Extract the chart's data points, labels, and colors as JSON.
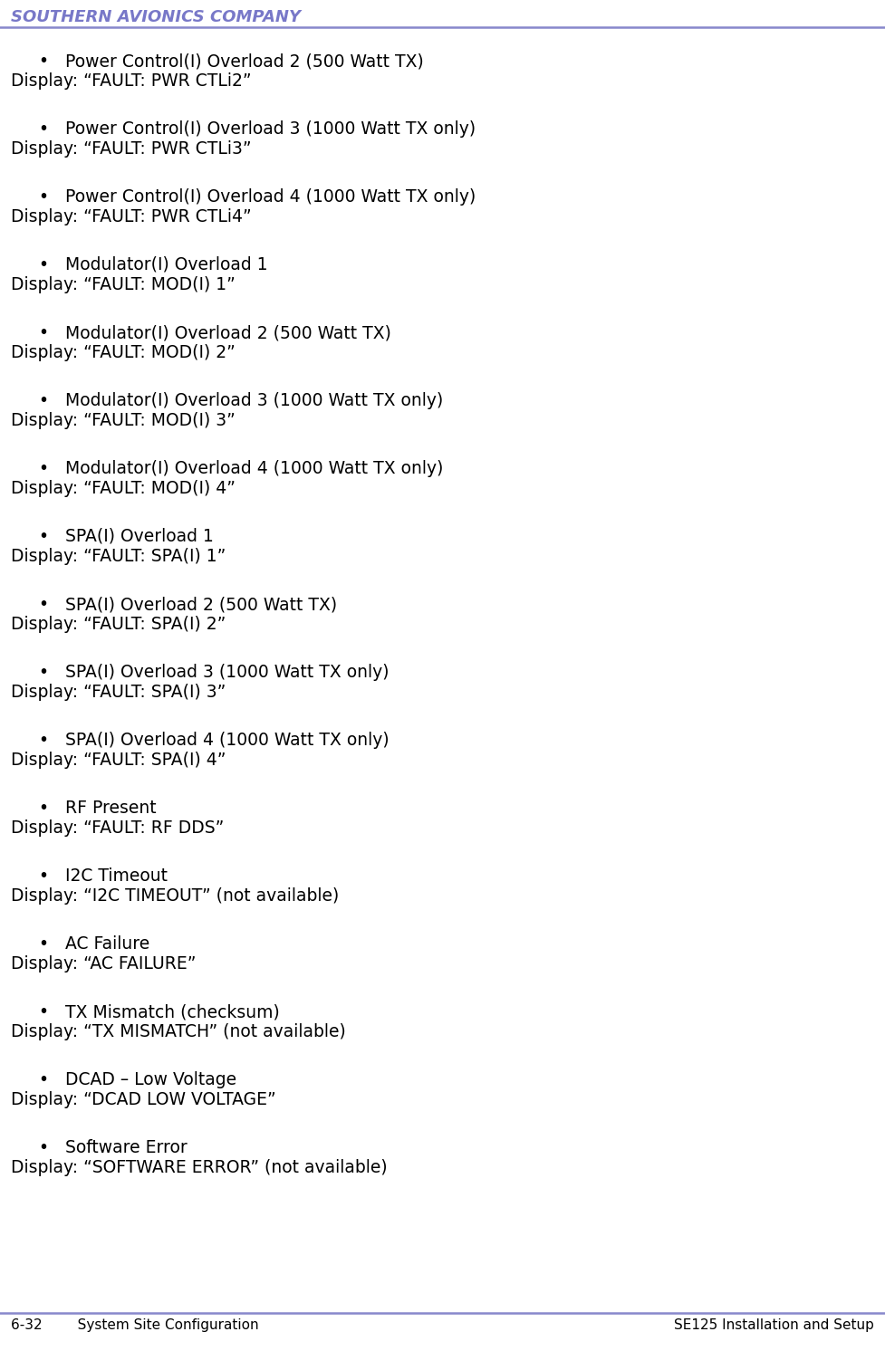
{
  "header_text": "SOUTHERN AVIONICS COMPANY",
  "header_color": "#7878C8",
  "header_line_color": "#8888CC",
  "bg_color": "#FFFFFF",
  "footer_left": "6-32        System Site Configuration",
  "footer_right": "SE125 Installation and Setup",
  "footer_color": "#000000",
  "footer_fontsize": 11,
  "header_fontsize": 13,
  "body_fontsize": 13.5,
  "bullet_char": "•",
  "entries": [
    {
      "bullet": "Power Control(I) Overload 2 (500 Watt TX)",
      "display": "Display: “FAULT: PWR CTLi2”"
    },
    {
      "bullet": "Power Control(I) Overload 3 (1000 Watt TX only)",
      "display": "Display: “FAULT: PWR CTLi3”"
    },
    {
      "bullet": "Power Control(I) Overload 4 (1000 Watt TX only)",
      "display": "Display: “FAULT: PWR CTLi4”"
    },
    {
      "bullet": "Modulator(I) Overload 1",
      "display": "Display: “FAULT: MOD(I) 1”"
    },
    {
      "bullet": "Modulator(I) Overload 2 (500 Watt TX)",
      "display": "Display: “FAULT: MOD(I) 2”"
    },
    {
      "bullet": "Modulator(I) Overload 3 (1000 Watt TX only)",
      "display": "Display: “FAULT: MOD(I) 3”"
    },
    {
      "bullet": "Modulator(I) Overload 4 (1000 Watt TX only)",
      "display": "Display: “FAULT: MOD(I) 4”"
    },
    {
      "bullet": "SPA(I) Overload 1",
      "display": "Display: “FAULT: SPA(I) 1”"
    },
    {
      "bullet": "SPA(I) Overload 2 (500 Watt TX)",
      "display": "Display: “FAULT: SPA(I) 2”"
    },
    {
      "bullet": "SPA(I) Overload 3 (1000 Watt TX only)",
      "display": "Display: “FAULT: SPA(I) 3”"
    },
    {
      "bullet": "SPA(I) Overload 4 (1000 Watt TX only)",
      "display": "Display: “FAULT: SPA(I) 4”"
    },
    {
      "bullet": "RF Present",
      "display": "Display: “FAULT: RF DDS”"
    },
    {
      "bullet": "I2C Timeout",
      "display": "Display: “I2C TIMEOUT” (not available)"
    },
    {
      "bullet": "AC Failure",
      "display": "Display: “AC FAILURE”"
    },
    {
      "bullet": "TX Mismatch (checksum)",
      "display": "Display: “TX MISMATCH” (not available)"
    },
    {
      "bullet": "DCAD – Low Voltage",
      "display": "Display: “DCAD LOW VOLTAGE”"
    },
    {
      "bullet": "Software Error",
      "display": "Display: “SOFTWARE ERROR” (not available)"
    }
  ]
}
